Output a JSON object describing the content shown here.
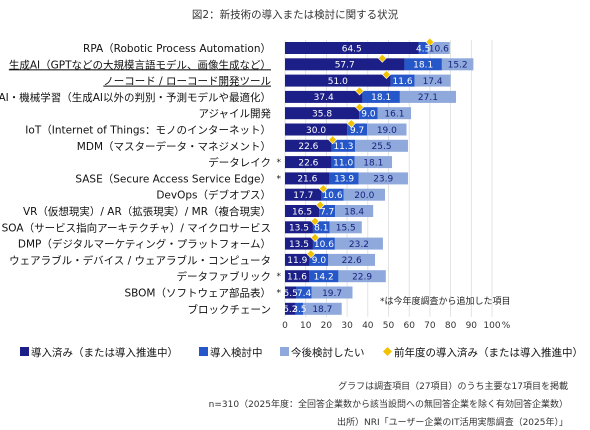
{
  "chart_data": {
    "type": "bar",
    "orientation": "horizontal",
    "stacked": true,
    "title": "図2：新技術の導入または検討に関する状況",
    "unit": "%",
    "xlim": [
      0,
      100
    ],
    "xticks": [
      0,
      10,
      20,
      30,
      40,
      50,
      60,
      70,
      80,
      90,
      100
    ],
    "categories": [
      "RPA（Robotic Process Automation）",
      "生成AI（GPTなどの大規模言語モデル、画像生成など）",
      "ノーコード / ローコード開発ツール",
      "AI・機械学習（生成AI以外の判別・予測モデルや最適化）",
      "アジャイル開発",
      "IoT（Internet of Things：モノのインターネット）",
      "MDM（マスターデータ・マネジメント）",
      "データレイク",
      "SASE（Secure Access Service Edge）",
      "DevOps（デブオプス）",
      "VR（仮想現実）/ AR（拡張現実）/ MR（複合現実）",
      "SOA（サービス指向アーキテクチャ）/ マイクロサービス",
      "DMP（デジタルマーケティング・プラットフォーム）",
      "ウェアラブル・デバイス / ウェアラブル・コンピュータ",
      "データファブリック",
      "SBOM（ソフトウェア部品表）",
      "ブロックチェーン"
    ],
    "new_item_flags": [
      false,
      false,
      false,
      false,
      false,
      false,
      false,
      true,
      true,
      false,
      false,
      false,
      false,
      false,
      true,
      true,
      false
    ],
    "new_item_mark": "*",
    "underlined": [
      false,
      true,
      true,
      false,
      false,
      false,
      false,
      false,
      false,
      false,
      false,
      false,
      false,
      false,
      false,
      false,
      false
    ],
    "series": [
      {
        "name": "導入済み（または導入推進中）",
        "color": "#1c1f87",
        "values": [
          64.5,
          57.7,
          51.0,
          37.4,
          35.8,
          30.0,
          22.6,
          22.6,
          21.6,
          17.7,
          16.5,
          13.5,
          13.5,
          11.9,
          11.6,
          5.5,
          5.2
        ]
      },
      {
        "name": "導入検討中",
        "color": "#2657c9",
        "values": [
          4.5,
          18.1,
          11.6,
          18.1,
          9.0,
          9.7,
          11.3,
          11.0,
          13.9,
          10.6,
          7.7,
          8.1,
          10.6,
          9.0,
          14.2,
          7.4,
          3.5
        ]
      },
      {
        "name": "今後検討したい",
        "color": "#8fa9dc",
        "values": [
          10.6,
          15.2,
          17.4,
          27.1,
          16.1,
          19.0,
          25.5,
          18.1,
          23.9,
          20.0,
          18.4,
          15.5,
          23.2,
          22.6,
          22.9,
          19.7,
          18.7
        ]
      }
    ],
    "previous_year": {
      "name": "前年度の導入済み（または導入推進中）",
      "color": "#f2c200",
      "marker": "diamond",
      "values": [
        70,
        47,
        49,
        36,
        36,
        32,
        23,
        0,
        0,
        18.5,
        17,
        14.5,
        14.5,
        12.5,
        0,
        0,
        0
      ],
      "present": [
        true,
        true,
        true,
        true,
        true,
        true,
        true,
        false,
        false,
        true,
        true,
        true,
        true,
        true,
        false,
        false,
        false
      ]
    },
    "note": "*は今年度調査から追加した項目"
  },
  "footnotes": [
    "グラフは調査項目（27項目）のうち主要な17項目を掲載",
    "n=310（2025年度：全回答企業数から該当設問への無回答企業を除く有効回答企業数）",
    "出所）NRI「ユーザー企業のIT活用実態調査（2025年）」"
  ]
}
